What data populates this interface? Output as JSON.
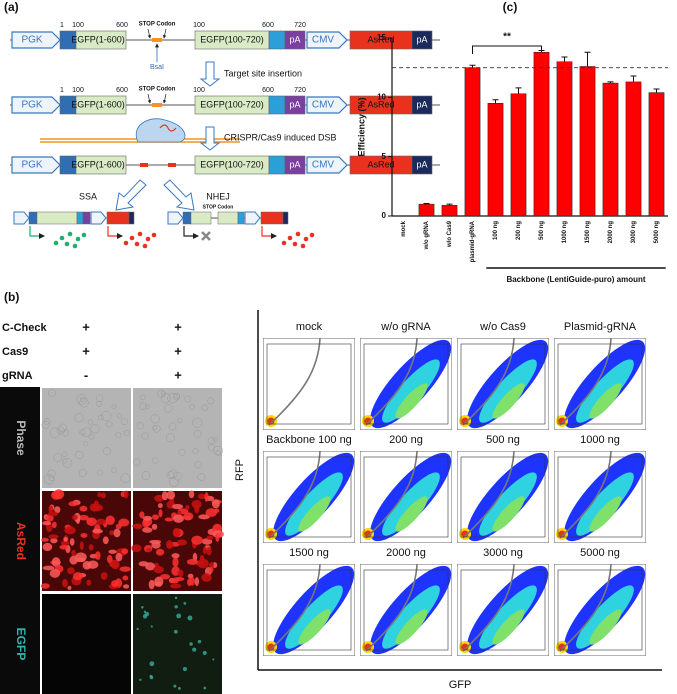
{
  "panel_a": {
    "label": "(a)",
    "row1": {
      "promoter": "PGK",
      "egfp_n": "EGFP(1-600)",
      "pos": [
        "1",
        "100",
        "600"
      ],
      "stop": "STOP Codon",
      "site": "BsaI",
      "pos2": [
        "100",
        "600",
        "720"
      ],
      "egfp_c": "EGFP(100-720)",
      "pa": "pA",
      "cmv": "CMV",
      "asred": "AsRed",
      "pa2": "pA"
    },
    "row2": {
      "promoter": "PGK",
      "egfp_n": "EGFP(1-600)",
      "pos": [
        "1",
        "100",
        "600"
      ],
      "stop": "STOP Codon",
      "pos2": [
        "100",
        "600",
        "720"
      ],
      "egfp_c": "EGFP(100-720)",
      "pa": "pA",
      "cmv": "CMV",
      "asred": "AsRed",
      "pa2": "pA"
    },
    "row3": {
      "promoter": "PGK",
      "egfp_n": "EGFP(1-600)",
      "egfp_c": "EGFP(100-720)",
      "pa": "pA",
      "cmv": "CMV",
      "asred": "AsRed",
      "pa2": "pA"
    },
    "step1": "Target site insertion",
    "step2": "CRISPR/Cas9 induced DSB",
    "ssa": "SSA",
    "nhej": "NHEJ",
    "stop_small": "STOP Codon"
  },
  "panel_b": {
    "label": "(b)",
    "conditions": [
      {
        "name": "C-Check",
        "values": [
          "+",
          "+"
        ]
      },
      {
        "name": "Cas9",
        "values": [
          "+",
          "+"
        ]
      },
      {
        "name": "gRNA",
        "values": [
          "-",
          "+"
        ]
      }
    ],
    "channels": [
      "Phase",
      "AsRed",
      "EGFP"
    ],
    "flow_titles": [
      "mock",
      "w/o gRNA",
      "w/o Cas9",
      "Plasmid-gRNA",
      "Backbone 100 ng",
      "200 ng",
      "500 ng",
      "1000 ng",
      "1500 ng",
      "2000 ng",
      "3000 ng",
      "5000 ng"
    ],
    "x_label": "GFP",
    "y_label": "RFP"
  },
  "chart_data": {
    "type": "bar",
    "label": "(c)",
    "y_label": "Efficiency (%)",
    "categories": [
      "mock",
      "w/o gRNA",
      "w/o Cas9",
      "plasmid-gRNA",
      "100 ng",
      "200 ng",
      "500 ng",
      "1000 ng",
      "1500 ng",
      "2000 ng",
      "3000 ng",
      "5000 ng"
    ],
    "values": [
      0,
      1.0,
      0.9,
      12.5,
      9.5,
      10.3,
      13.8,
      13.0,
      12.6,
      11.2,
      11.3,
      10.4
    ],
    "errors": [
      0,
      0.05,
      0.1,
      0.2,
      0.3,
      0.5,
      0.15,
      0.4,
      1.2,
      0.1,
      0.5,
      0.3
    ],
    "color": "#ff0000",
    "ylim": [
      0,
      15
    ],
    "yticks": [
      0,
      5,
      10,
      15
    ],
    "reference_line": 12.5,
    "annotation": "**",
    "group_label": "Backbone (LentiGuide-puro) amount"
  }
}
